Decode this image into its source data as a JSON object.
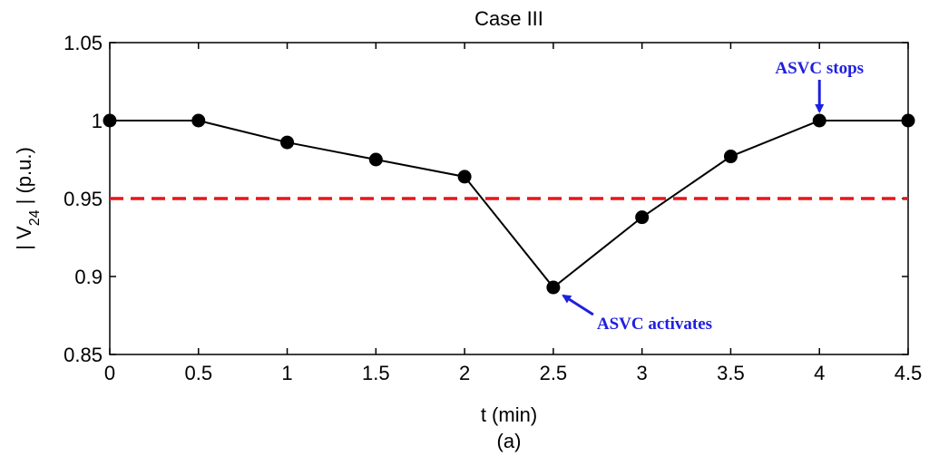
{
  "chart_data": {
    "type": "line",
    "title": "Case III",
    "xlabel": "t (min)",
    "ylabel_parts": {
      "prefix": "| V",
      "subscript": "24",
      "suffix": " |  (p.u.)"
    },
    "caption": "(a)",
    "xlim": [
      0,
      4.5
    ],
    "ylim": [
      0.85,
      1.05
    ],
    "x_ticks": [
      0,
      0.5,
      1,
      1.5,
      2,
      2.5,
      3,
      3.5,
      4,
      4.5
    ],
    "x_tick_labels": [
      "0",
      "0.5",
      "1",
      "1.5",
      "2",
      "2.5",
      "3",
      "3.5",
      "4",
      "4.5"
    ],
    "y_ticks": [
      0.85,
      0.9,
      0.95,
      1.0,
      1.05
    ],
    "y_tick_labels": [
      "0.85",
      "0.9",
      "0.95",
      "1",
      "1.05"
    ],
    "grid": false,
    "series": [
      {
        "x": [
          0,
          0.5,
          1,
          1.5,
          2,
          2.5,
          3,
          3.5,
          4,
          4.5
        ],
        "y": [
          1.0,
          1.0,
          0.986,
          0.975,
          0.964,
          0.893,
          0.938,
          0.977,
          1.0,
          1.0
        ],
        "color": "#000000",
        "marker": "circle"
      }
    ],
    "reference_line": {
      "y": 0.95,
      "color": "#e8161b",
      "style": "dashed"
    },
    "annotations": [
      {
        "text": "ASVC activates",
        "x": 2.5,
        "y": 0.893,
        "color": "#1f1fe0"
      },
      {
        "text": "ASVC stops",
        "x": 4.0,
        "y": 1.0,
        "color": "#1f1fe0"
      }
    ]
  }
}
